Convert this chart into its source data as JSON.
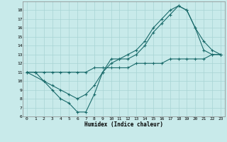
{
  "xlabel": "Humidex (Indice chaleur)",
  "bg_color": "#c8eaea",
  "line_color": "#1a6b6b",
  "grid_color": "#a8d4d4",
  "xlim": [
    -0.5,
    23.5
  ],
  "ylim": [
    6,
    19
  ],
  "xticks": [
    0,
    1,
    2,
    3,
    4,
    5,
    6,
    7,
    8,
    9,
    10,
    11,
    12,
    13,
    14,
    15,
    16,
    17,
    18,
    19,
    20,
    21,
    22,
    23
  ],
  "yticks": [
    6,
    7,
    8,
    9,
    10,
    11,
    12,
    13,
    14,
    15,
    16,
    17,
    18
  ],
  "line1_x": [
    0,
    1,
    2,
    3,
    4,
    5,
    6,
    7,
    8,
    9,
    10,
    11,
    12,
    13,
    14,
    15,
    16,
    17,
    18,
    19,
    20,
    21,
    22,
    23
  ],
  "line1_y": [
    11,
    11,
    10,
    9,
    8,
    7.5,
    6.5,
    6.5,
    8.5,
    11,
    12.5,
    12.5,
    12.5,
    13,
    14,
    15.5,
    16.5,
    17.5,
    18.5,
    18,
    16,
    13.5,
    13,
    13
  ],
  "line2_x": [
    0,
    2,
    3,
    4,
    5,
    6,
    7,
    8,
    9,
    10,
    11,
    12,
    13,
    14,
    15,
    16,
    17,
    18,
    19,
    20,
    21,
    22,
    23
  ],
  "line2_y": [
    11,
    10,
    9.5,
    9,
    8.5,
    8,
    8.5,
    9.5,
    11,
    12,
    12.5,
    13,
    13.5,
    14.5,
    16,
    17,
    18,
    18.5,
    18,
    16,
    14.5,
    13.5,
    13
  ],
  "line3_x": [
    0,
    1,
    2,
    3,
    4,
    5,
    6,
    7,
    8,
    9,
    10,
    11,
    12,
    13,
    14,
    15,
    16,
    17,
    18,
    19,
    20,
    21,
    22,
    23
  ],
  "line3_y": [
    11,
    11,
    11,
    11,
    11,
    11,
    11,
    11,
    11.5,
    11.5,
    11.5,
    11.5,
    11.5,
    12,
    12,
    12,
    12,
    12.5,
    12.5,
    12.5,
    12.5,
    12.5,
    13,
    13
  ]
}
